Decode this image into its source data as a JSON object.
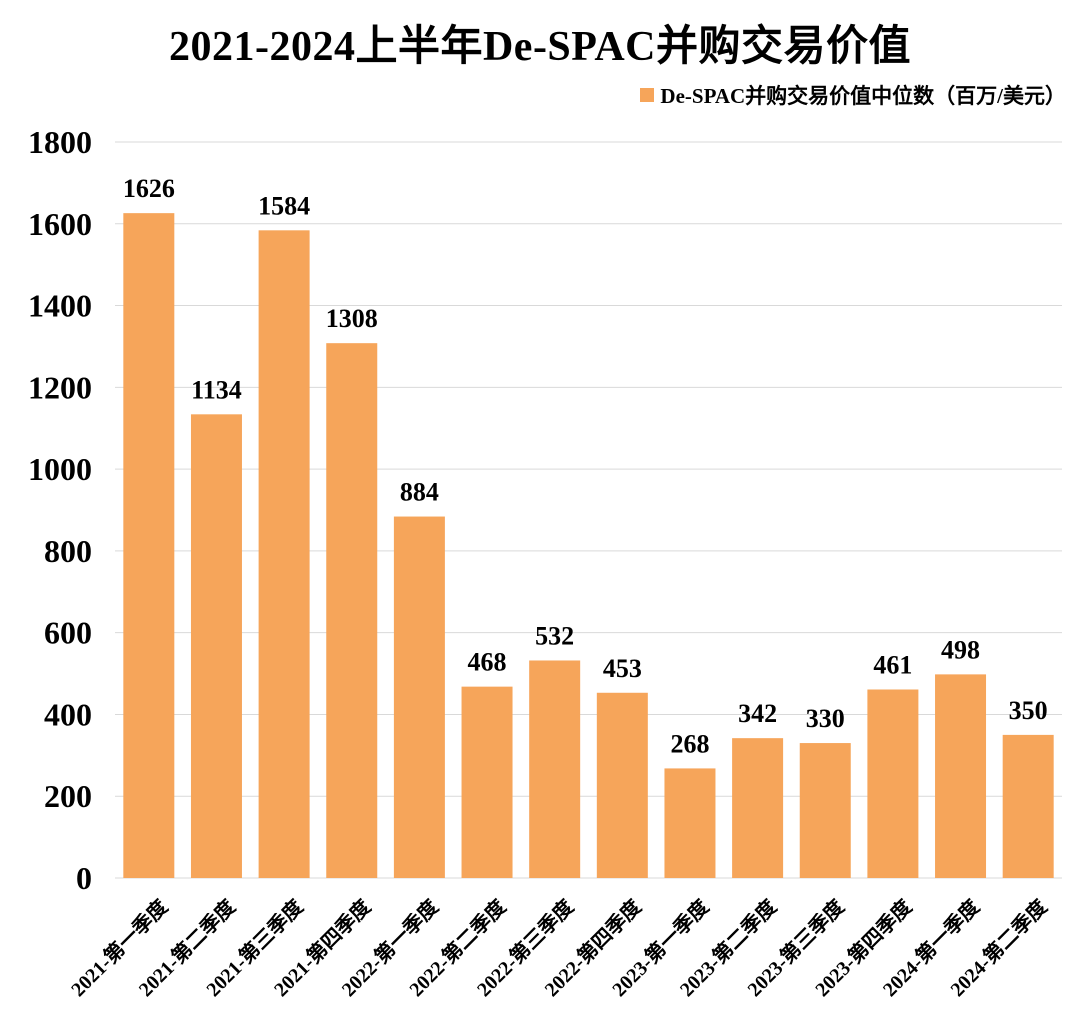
{
  "chart_data": {
    "type": "bar",
    "title": "2021-2024上半年De-SPAC并购交易价值",
    "categories": [
      "2021-第一季度",
      "2021-第二季度",
      "2021-第三季度",
      "2021-第四季度",
      "2022-第一季度",
      "2022-第二季度",
      "2022-第三季度",
      "2022-第四季度",
      "2023-第一季度",
      "2023-第二季度",
      "2023-第三季度",
      "2023-第四季度",
      "2024-第一季度",
      "2024-第二季度"
    ],
    "series": [
      {
        "name": "De-SPAC并购交易价值中位数（百万/美元）",
        "values": [
          1626,
          1134,
          1584,
          1308,
          884,
          468,
          532,
          453,
          268,
          342,
          330,
          461,
          498,
          350
        ]
      }
    ],
    "ylim": [
      0,
      1800
    ],
    "yticks": [
      0,
      200,
      400,
      600,
      800,
      1000,
      1200,
      1400,
      1600,
      1800
    ],
    "grid": true,
    "legend_position": "top-right",
    "bar_color": "#F6A55A",
    "grid_color": "#D9D9D9"
  }
}
